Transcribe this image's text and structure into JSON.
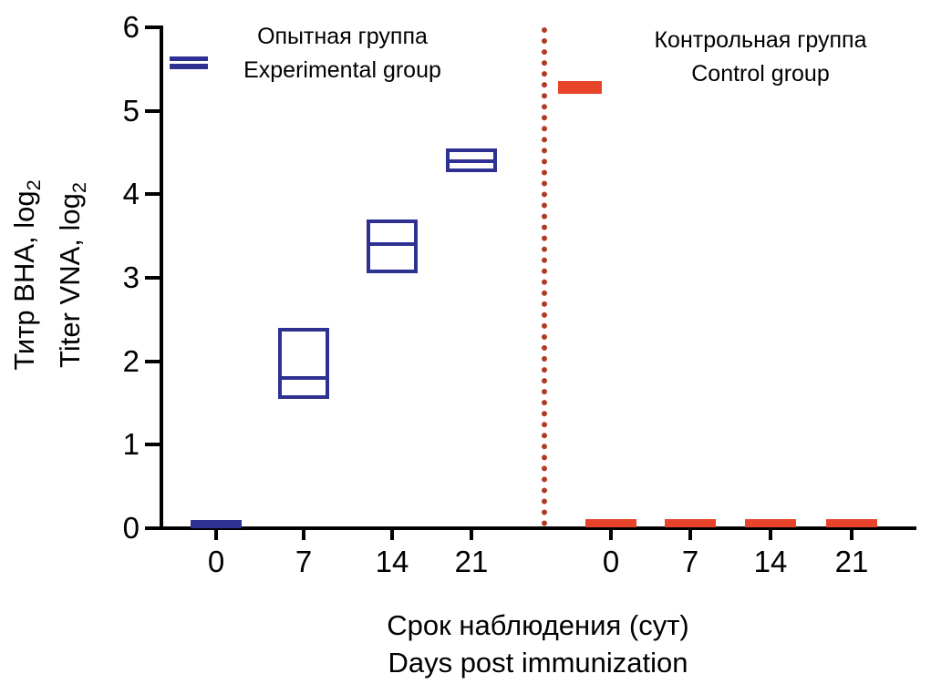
{
  "chart_data": {
    "type": "box",
    "title": "",
    "ylabel": {
      "ru": "Титр ВНА, log",
      "en": "Titer VNA, log",
      "sub": "2"
    },
    "xlabel": {
      "ru": "Срок наблюдения (сут)",
      "en": "Days post immunization"
    },
    "ylim": [
      0,
      6
    ],
    "yticks": [
      0,
      1,
      2,
      3,
      4,
      5,
      6
    ],
    "legend_position": "top-inside",
    "grid": false,
    "groups": [
      {
        "id": "experimental",
        "legend": {
          "ru": "Опытная группа",
          "en": "Experimental group"
        },
        "color": "#2e3191",
        "categories": [
          "0",
          "7",
          "14",
          "21"
        ],
        "boxes": [
          {
            "day": "0",
            "type": "bar",
            "value": 0.05
          },
          {
            "day": "7",
            "type": "box",
            "q1": 1.55,
            "median": 1.8,
            "q3": 2.4
          },
          {
            "day": "14",
            "type": "box",
            "q1": 3.05,
            "median": 3.4,
            "q3": 3.7
          },
          {
            "day": "21",
            "type": "box",
            "q1": 4.27,
            "median": 4.4,
            "q3": 4.55
          }
        ]
      },
      {
        "id": "control",
        "legend": {
          "ru": "Контрольная группа",
          "en": "Control group"
        },
        "color": "#e8432b",
        "categories": [
          "0",
          "7",
          "14",
          "21"
        ],
        "boxes": [
          {
            "day": "0",
            "type": "bar",
            "value": 0.07
          },
          {
            "day": "7",
            "type": "bar",
            "value": 0.07
          },
          {
            "day": "14",
            "type": "bar",
            "value": 0.07
          },
          {
            "day": "21",
            "type": "bar",
            "value": 0.07
          }
        ]
      }
    ],
    "separator": {
      "color": "#b03a26",
      "style": "dotted"
    }
  }
}
